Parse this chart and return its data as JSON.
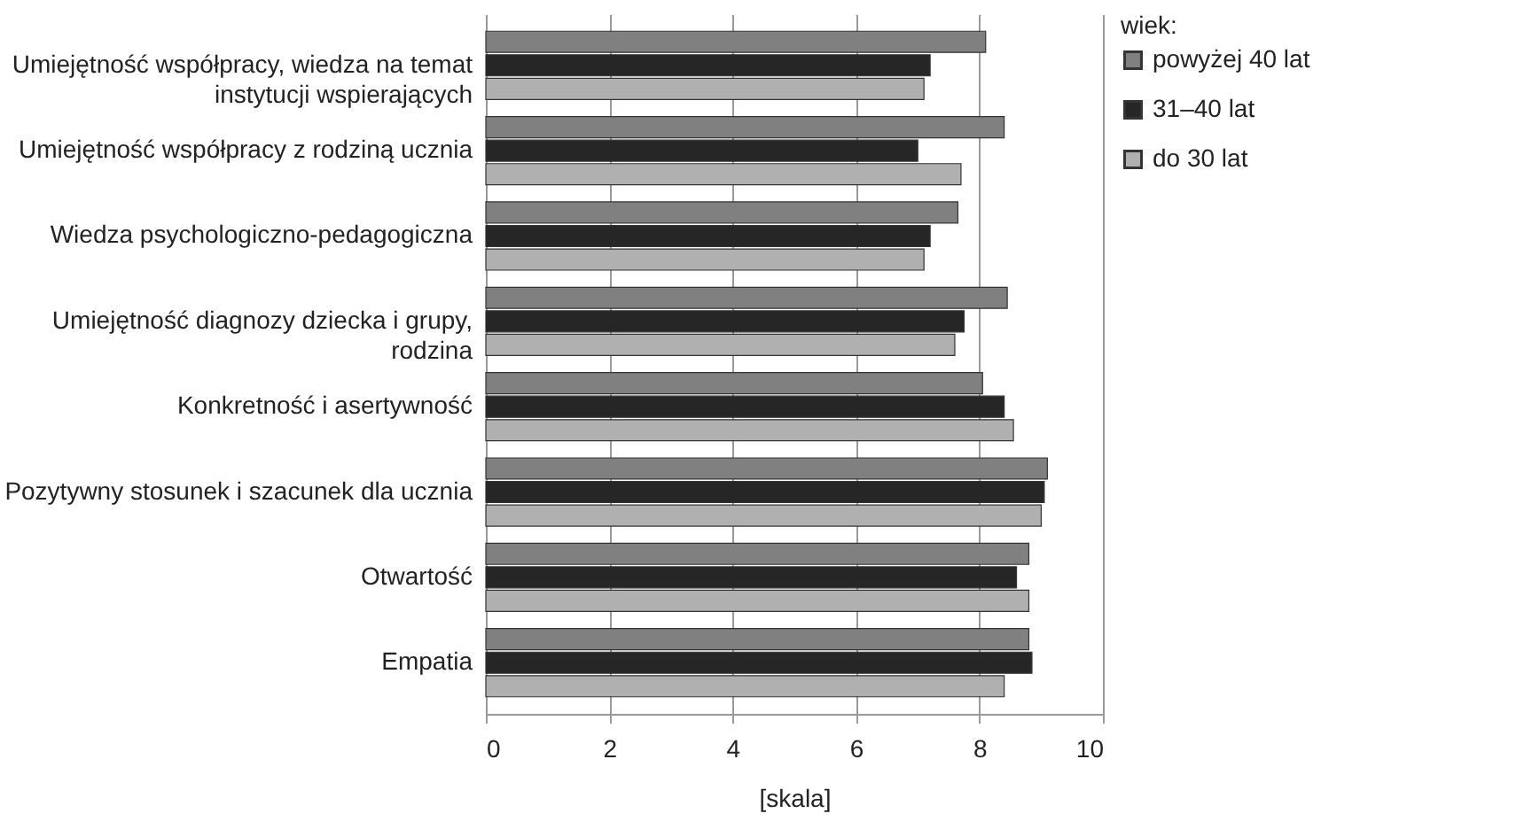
{
  "chart_data": {
    "type": "bar",
    "orientation": "horizontal",
    "xlabel": "[skala]",
    "legend_title": "wiek:",
    "legend": "right",
    "grid": "x",
    "categories": [
      "Umiejętność współpracy, wiedza na temat instytucji wspierających",
      "Umiejętność współpracy z rodziną ucznia",
      "Wiedza psychologiczno-pedagogiczna",
      "Umiejętność diagnozy dziecka i grupy, rodzina",
      "Konkretność i asertywność",
      "Pozytywny stosunek i szacunek dla ucznia",
      "Otwartość",
      "Empatia"
    ],
    "xlim": [
      0,
      10
    ],
    "xticks": [
      0,
      2,
      4,
      6,
      8,
      10
    ],
    "series": [
      {
        "name": "powyżej 40 lat",
        "color": "#808080",
        "values": [
          8.1,
          8.4,
          7.65,
          8.45,
          8.05,
          9.1,
          8.8,
          8.8
        ]
      },
      {
        "name": "31–40 lat",
        "color": "#262626",
        "values": [
          7.2,
          7.0,
          7.2,
          7.75,
          8.4,
          9.05,
          8.6,
          8.85
        ]
      },
      {
        "name": "do 30 lat",
        "color": "#b0b0b0",
        "values": [
          7.1,
          7.7,
          7.1,
          7.6,
          8.55,
          9.0,
          8.8,
          8.4
        ]
      }
    ]
  }
}
